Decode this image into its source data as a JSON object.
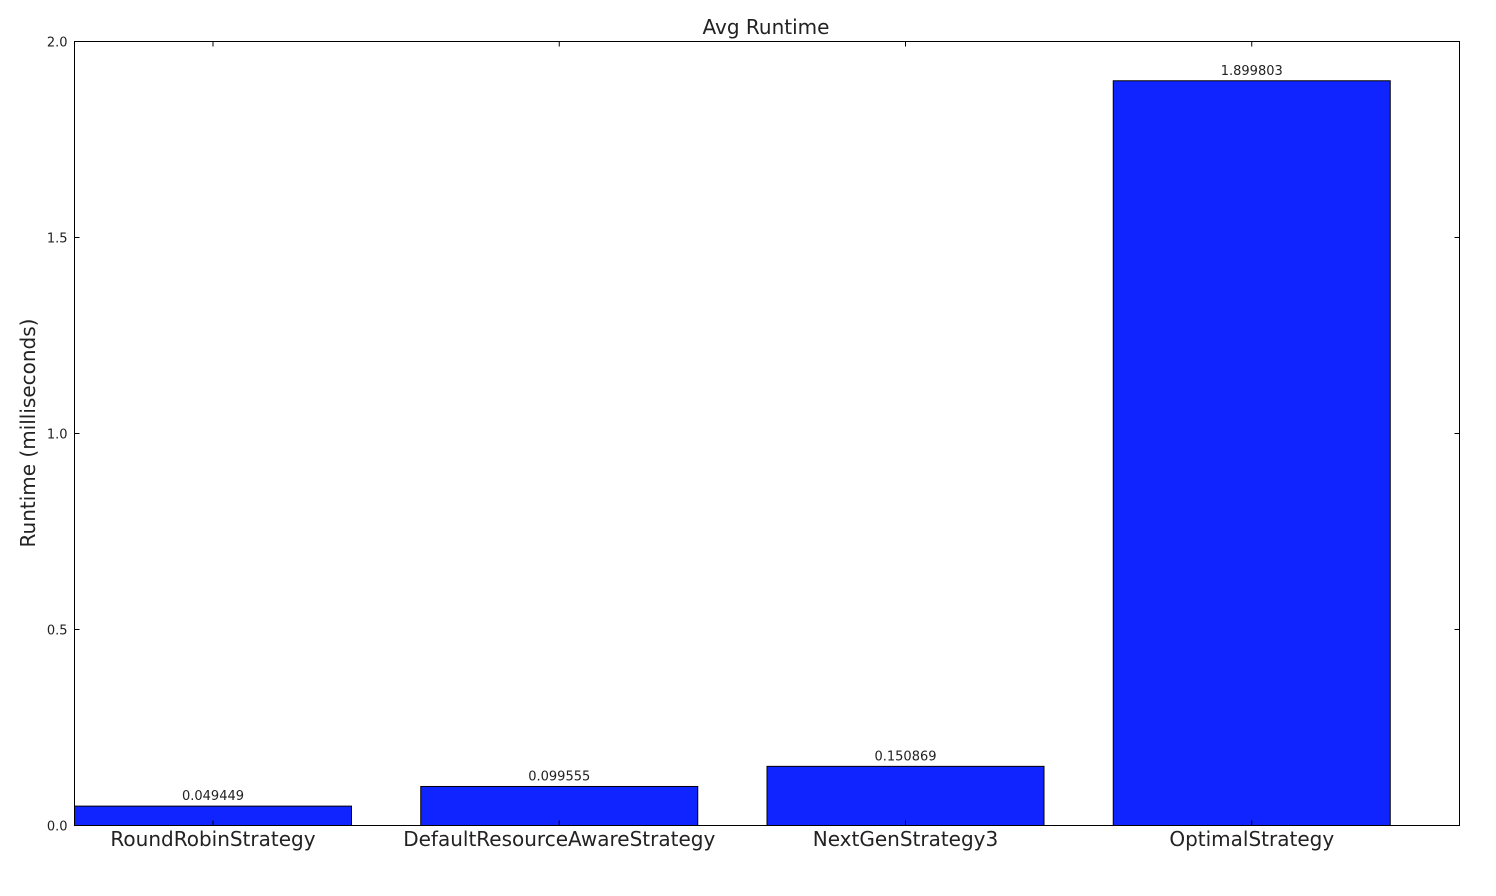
{
  "chart_data": {
    "type": "bar",
    "title": "Avg Runtime",
    "xlabel": "",
    "ylabel": "Runtime (milliseconds)",
    "categories": [
      "RoundRobinStrategy",
      "DefaultResourceAwareStrategy",
      "NextGenStrategy3",
      "OptimalStrategy"
    ],
    "values": [
      0.049449,
      0.099555,
      0.150869,
      1.899803
    ],
    "data_labels": [
      "0.049449",
      "0.099555",
      "0.150869",
      "1.899803"
    ],
    "ylim": [
      0,
      2.0
    ],
    "yticks": [
      0.0,
      0.5,
      1.0,
      1.5,
      2.0
    ],
    "ytick_labels": [
      "0.0",
      "0.5",
      "1.0",
      "1.5",
      "2.0"
    ],
    "grid": false,
    "bar_color": "#1024ff"
  }
}
